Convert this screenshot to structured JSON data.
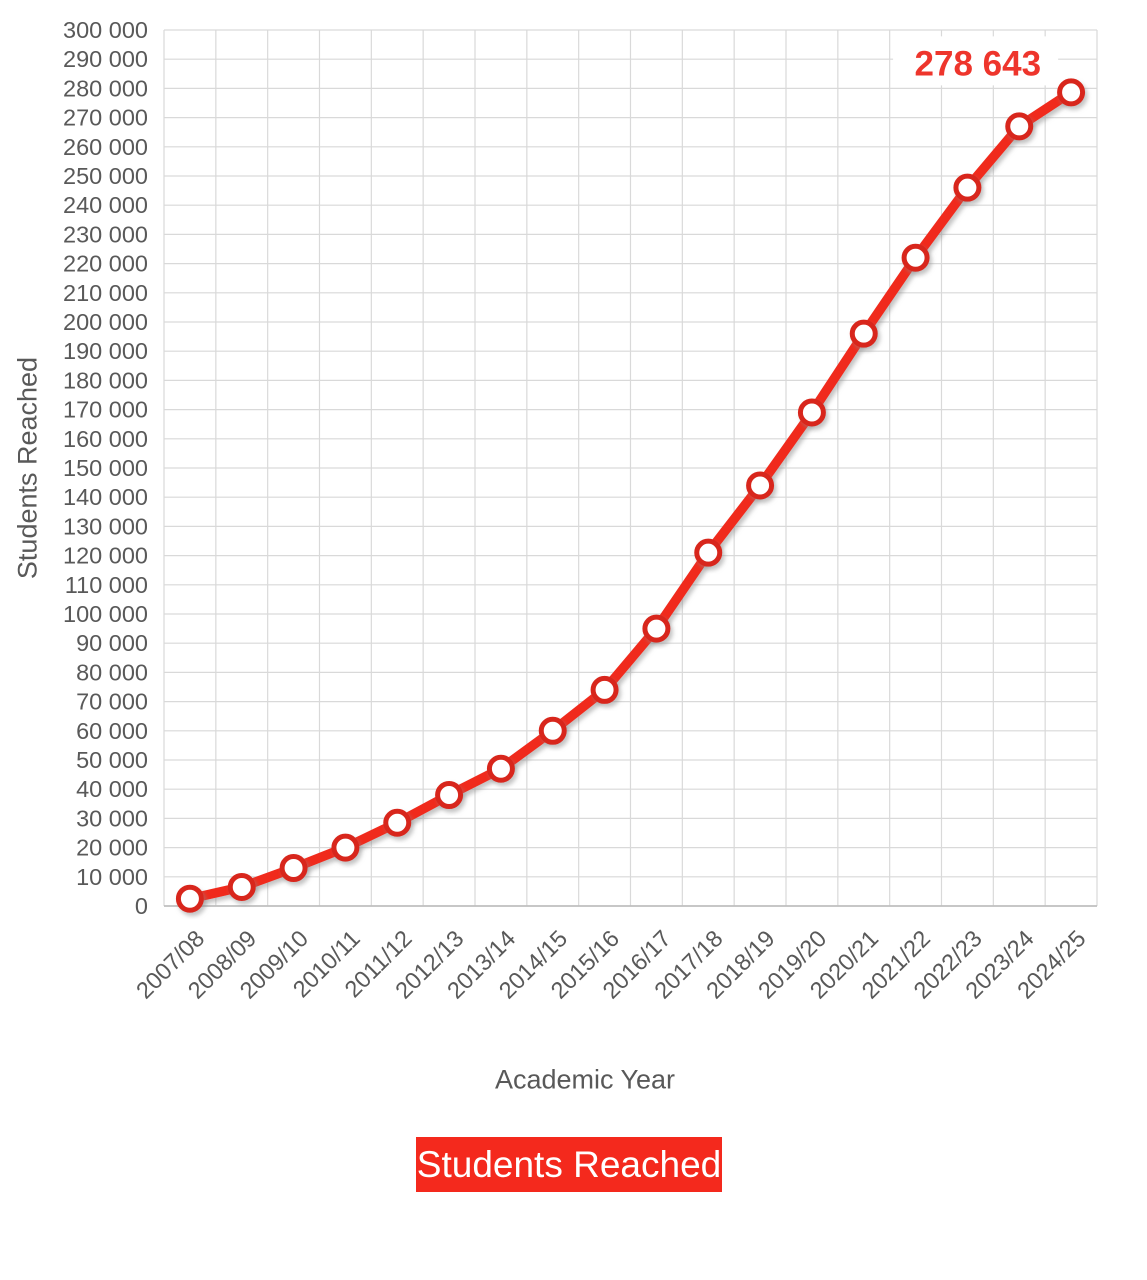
{
  "chart_data": {
    "type": "line",
    "categories": [
      "2007/08",
      "2008/09",
      "2009/10",
      "2010/11",
      "2011/12",
      "2012/13",
      "2013/14",
      "2014/15",
      "2015/16",
      "2016/17",
      "2017/18",
      "2018/19",
      "2019/20",
      "2020/21",
      "2021/22",
      "2022/23",
      "2023/24",
      "2024/25"
    ],
    "series": [
      {
        "name": "Students Reached",
        "values": [
          2500,
          6500,
          13000,
          20000,
          28500,
          38000,
          47000,
          60000,
          74000,
          95000,
          121000,
          144000,
          169000,
          196000,
          222000,
          246000,
          267000,
          278643
        ]
      }
    ],
    "xlabel": "Academic Year",
    "ylabel": "Students Reached",
    "ylim": [
      0,
      300000
    ],
    "ytick_step": 10000,
    "grid": true,
    "legend_position": "bottom",
    "annotation": {
      "text": "278 643",
      "x_index": 17,
      "value": 278643
    },
    "colors": {
      "line": "#f02b1c",
      "marker_ring": "#d8271b",
      "marker_fill": "#ffffff",
      "annotation_text": "#ee352c",
      "axis_text": "#595959",
      "gridline": "#d9d9d9",
      "axis_line": "#bfbfbf",
      "legend_bg": "#f4291d",
      "legend_text": "#ffffff",
      "background": "#ffffff"
    }
  }
}
